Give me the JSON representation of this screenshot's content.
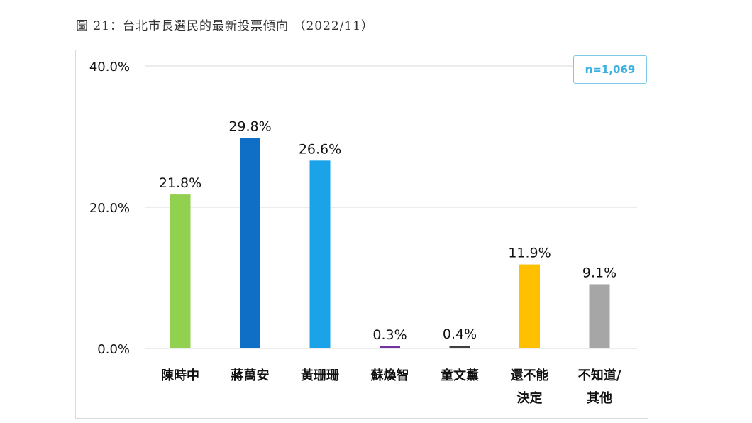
{
  "title": "圖 21：台北市長選民的最新投票傾向 （2022/11）",
  "sample_note": "n=1,069",
  "colors": {
    "grid": "#d9d9d9",
    "badge_border": "#7cc8e8",
    "badge_text": "#3ab0e2"
  },
  "chart_data": {
    "type": "bar",
    "title": "圖 21：台北市長選民的最新投票傾向 （2022/11）",
    "xlabel": "",
    "ylabel": "",
    "ylim": [
      0,
      40
    ],
    "yticks": [
      0,
      20,
      40
    ],
    "ytick_labels": [
      "0.0%",
      "20.0%",
      "40.0%"
    ],
    "grid": true,
    "legend": "none",
    "categories": [
      [
        "陳時中"
      ],
      [
        "蔣萬安"
      ],
      [
        "黃珊珊"
      ],
      [
        "蘇煥智"
      ],
      [
        "童文薰"
      ],
      [
        "還不能",
        "決定"
      ],
      [
        "不知道/",
        "其他"
      ]
    ],
    "values": [
      21.8,
      29.8,
      26.6,
      0.3,
      0.4,
      11.9,
      9.1
    ],
    "value_labels": [
      "21.8%",
      "29.8%",
      "26.6%",
      "0.3%",
      "0.4%",
      "11.9%",
      "9.1%"
    ],
    "bar_colors": [
      "#92d050",
      "#0f6fc6",
      "#1aa3e8",
      "#7030a0",
      "#404040",
      "#ffc000",
      "#a6a6a6"
    ]
  }
}
